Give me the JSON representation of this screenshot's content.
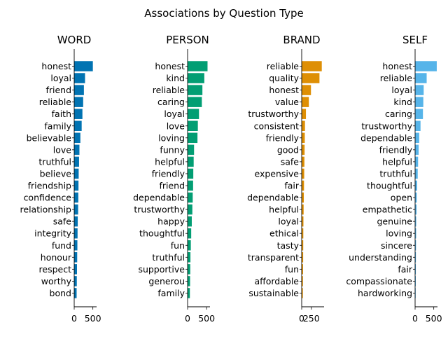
{
  "chart_data": {
    "title": "Associations by Question Type",
    "type": "bar",
    "orientation": "horizontal",
    "panels": [
      {
        "title": "WORD",
        "color": "#0173b2",
        "xlim": [
          0,
          600
        ],
        "xticks": [
          0,
          500
        ],
        "tick_labels": [
          "0",
          "500"
        ],
        "categories": [
          "honest",
          "loyal",
          "friend",
          "reliable",
          "faith",
          "family",
          "believable",
          "love",
          "truthful",
          "believe",
          "friendship",
          "confidence",
          "relationship",
          "safe",
          "integrity",
          "fund",
          "honour",
          "respect",
          "worthy",
          "bond"
        ],
        "values": [
          500,
          290,
          260,
          240,
          220,
          200,
          165,
          140,
          130,
          120,
          115,
          110,
          105,
          95,
          90,
          85,
          80,
          75,
          70,
          65
        ]
      },
      {
        "title": "PERSON",
        "color": "#029e73",
        "xlim": [
          0,
          590
        ],
        "xticks": [
          0,
          500
        ],
        "tick_labels": [
          "0",
          "500"
        ],
        "categories": [
          "honest",
          "kind",
          "reliable",
          "caring",
          "loyal",
          "love",
          "loving",
          "funny",
          "helpful",
          "friendly",
          "friend",
          "dependable",
          "trustworthy",
          "happy",
          "thoughtful",
          "fun",
          "truthful",
          "supportive",
          "generou",
          "family"
        ],
        "values": [
          525,
          440,
          390,
          375,
          300,
          270,
          260,
          170,
          160,
          150,
          145,
          135,
          125,
          110,
          95,
          85,
          75,
          70,
          65,
          60
        ]
      },
      {
        "title": "BRAND",
        "color": "#de8f05",
        "xlim": [
          0,
          580
        ],
        "xticks": [
          0,
          250
        ],
        "tick_labels": [
          "0",
          "250"
        ],
        "categories": [
          "reliable",
          "quality",
          "honest",
          "value",
          "trustworthy",
          "consistent",
          "friendly",
          "good",
          "safe",
          "expensive",
          "fair",
          "dependable",
          "helpful",
          "loyal",
          "ethical",
          "tasty",
          "transparent",
          "fun",
          "affordable",
          "sustainable"
        ],
        "values": [
          520,
          460,
          240,
          185,
          110,
          85,
          80,
          75,
          70,
          65,
          60,
          55,
          50,
          45,
          42,
          40,
          38,
          35,
          32,
          30
        ]
      },
      {
        "title": "SELF",
        "color": "#56b4e9",
        "xlim": [
          0,
          600
        ],
        "xticks": [
          0,
          500
        ],
        "tick_labels": [
          "0",
          "500"
        ],
        "categories": [
          "honest",
          "reliable",
          "loyal",
          "kind",
          "caring",
          "trustworthy",
          "dependable",
          "friendly",
          "helpful",
          "truthful",
          "thoughtful",
          "open",
          "empathetic",
          "genuine",
          "loving",
          "sincere",
          "understanding",
          "fair",
          "compassionate",
          "hardworking"
        ],
        "values": [
          580,
          310,
          230,
          220,
          210,
          145,
          110,
          95,
          80,
          70,
          55,
          45,
          40,
          30,
          28,
          25,
          22,
          20,
          18,
          15
        ]
      }
    ]
  }
}
